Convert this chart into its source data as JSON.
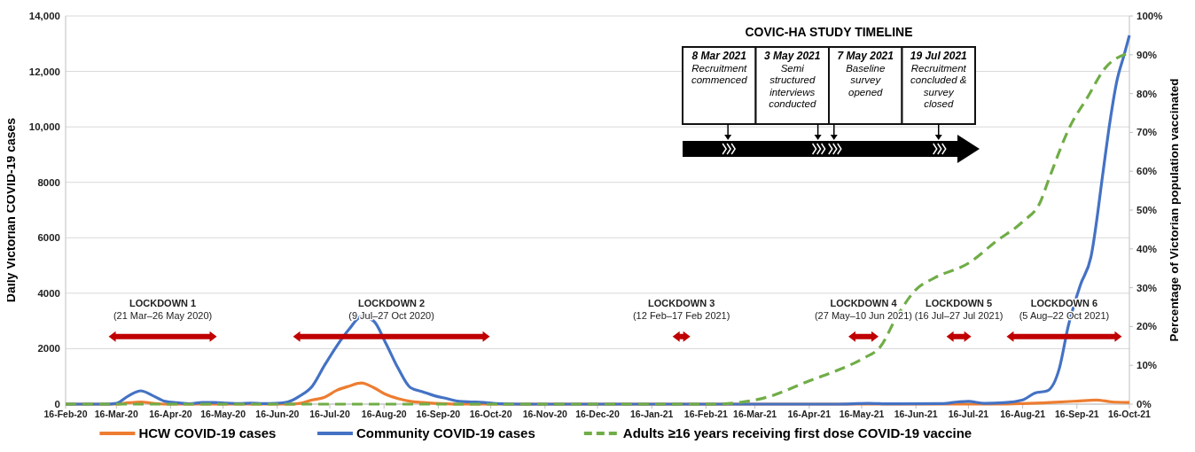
{
  "chart_data": {
    "type": "line",
    "ylabel": "Daily Victorian COVID-19 cases",
    "y2label": "Percentage of Victorian population vaccinated",
    "xlim": [
      "2020-02-16",
      "2021-10-16"
    ],
    "xticks": [
      {
        "value": "2020-02-16",
        "label": "16-Feb-20"
      },
      {
        "value": "2020-03-16",
        "label": "16-Mar-20"
      },
      {
        "value": "2020-04-16",
        "label": "16-Apr-20"
      },
      {
        "value": "2020-05-16",
        "label": "16-May-20"
      },
      {
        "value": "2020-06-16",
        "label": "16-Jun-20"
      },
      {
        "value": "2020-07-16",
        "label": "16-Jul-20"
      },
      {
        "value": "2020-08-16",
        "label": "16-Aug-20"
      },
      {
        "value": "2020-09-16",
        "label": "16-Sep-20"
      },
      {
        "value": "2020-10-16",
        "label": "16-Oct-20"
      },
      {
        "value": "2020-11-16",
        "label": "16-Nov-20"
      },
      {
        "value": "2020-12-16",
        "label": "16-Dec-20"
      },
      {
        "value": "2021-01-16",
        "label": "16-Jan-21"
      },
      {
        "value": "2021-02-16",
        "label": "16-Feb-21"
      },
      {
        "value": "2021-03-16",
        "label": "16-Mar-21"
      },
      {
        "value": "2021-04-16",
        "label": "16-Apr-21"
      },
      {
        "value": "2021-05-16",
        "label": "16-May-21"
      },
      {
        "value": "2021-06-16",
        "label": "16-Jun-21"
      },
      {
        "value": "2021-07-16",
        "label": "16-Jul-21"
      },
      {
        "value": "2021-08-16",
        "label": "16-Aug-21"
      },
      {
        "value": "2021-09-16",
        "label": "16-Sep-21"
      },
      {
        "value": "2021-10-16",
        "label": "16-Oct-21"
      }
    ],
    "ylim": [
      0,
      14000
    ],
    "yticks": [
      0,
      2000,
      4000,
      6000,
      8000,
      {
        "value": 10000,
        "label": "10,000"
      },
      {
        "value": 12000,
        "label": "12,000"
      },
      {
        "value": 14000,
        "label": "14,000"
      }
    ],
    "y2lim": [
      0,
      100
    ],
    "y2ticks": [
      {
        "value": 0,
        "label": "0%"
      },
      {
        "value": 10,
        "label": "10%"
      },
      {
        "value": 20,
        "label": "20%"
      },
      {
        "value": 30,
        "label": "30%"
      },
      {
        "value": 40,
        "label": "40%"
      },
      {
        "value": 50,
        "label": "50%"
      },
      {
        "value": 60,
        "label": "60%"
      },
      {
        "value": 70,
        "label": "70%"
      },
      {
        "value": 80,
        "label": "80%"
      },
      {
        "value": 90,
        "label": "90%"
      },
      {
        "value": 100,
        "label": "100%"
      }
    ],
    "grid": "y",
    "legend": "bottom",
    "series": [
      {
        "name": "HCW COVID-19 cases",
        "color": "#ed7d31",
        "x": [
          "2020-02-16",
          "2020-03-16",
          "2020-03-23",
          "2020-03-30",
          "2020-04-06",
          "2020-04-13",
          "2020-06-22",
          "2020-06-29",
          "2020-07-06",
          "2020-07-13",
          "2020-07-20",
          "2020-07-27",
          "2020-08-03",
          "2020-08-10",
          "2020-08-17",
          "2020-08-24",
          "2020-08-31",
          "2020-09-07",
          "2020-09-14",
          "2020-09-21",
          "2020-10-01",
          "2021-08-01",
          "2021-08-16",
          "2021-09-01",
          "2021-09-16",
          "2021-09-27",
          "2021-10-06",
          "2021-10-16"
        ],
        "values": [
          0,
          0,
          50,
          80,
          30,
          0,
          0,
          30,
          150,
          250,
          500,
          650,
          760,
          600,
          350,
          200,
          100,
          60,
          30,
          10,
          0,
          0,
          20,
          60,
          110,
          150,
          80,
          60
        ]
      },
      {
        "name": "Community COVID-19 cases",
        "color": "#4472c4",
        "x": [
          "2020-02-16",
          "2020-03-09",
          "2020-03-16",
          "2020-03-23",
          "2020-03-30",
          "2020-04-06",
          "2020-04-13",
          "2020-04-20",
          "2020-04-27",
          "2020-05-04",
          "2020-05-11",
          "2020-05-18",
          "2020-05-25",
          "2020-06-01",
          "2020-06-08",
          "2020-06-15",
          "2020-06-22",
          "2020-06-29",
          "2020-07-06",
          "2020-07-13",
          "2020-07-20",
          "2020-07-27",
          "2020-08-03",
          "2020-08-10",
          "2020-08-17",
          "2020-08-24",
          "2020-08-31",
          "2020-09-07",
          "2020-09-14",
          "2020-09-21",
          "2020-09-28",
          "2020-10-05",
          "2020-10-12",
          "2020-10-19",
          "2020-11-02",
          "2021-05-01",
          "2021-05-20",
          "2021-06-01",
          "2021-07-01",
          "2021-07-10",
          "2021-07-16",
          "2021-07-25",
          "2021-08-05",
          "2021-08-16",
          "2021-08-23",
          "2021-08-30",
          "2021-09-06",
          "2021-09-11",
          "2021-09-18",
          "2021-09-24",
          "2021-10-01",
          "2021-10-04",
          "2021-10-09",
          "2021-10-13",
          "2021-10-16"
        ],
        "values": [
          0,
          0,
          30,
          300,
          480,
          300,
          100,
          50,
          10,
          60,
          60,
          40,
          20,
          40,
          20,
          30,
          80,
          300,
          650,
          1400,
          2100,
          2700,
          3150,
          3000,
          2200,
          1300,
          600,
          450,
          300,
          200,
          100,
          80,
          60,
          20,
          0,
          0,
          30,
          10,
          20,
          80,
          100,
          30,
          50,
          150,
          400,
          480,
          1300,
          2800,
          4300,
          5300,
          8400,
          9800,
          11700,
          12600,
          13300
        ]
      },
      {
        "name": "Adults ≥16 years receiving first dose COVID-19 vaccine",
        "color": "#70ad47",
        "axis": "y2",
        "line_style": "dashed",
        "x": [
          "2020-02-16",
          "2021-02-22",
          "2021-03-08",
          "2021-03-23",
          "2021-04-16",
          "2021-05-01",
          "2021-05-16",
          "2021-05-27",
          "2021-06-05",
          "2021-06-16",
          "2021-06-27",
          "2021-07-16",
          "2021-08-01",
          "2021-08-16",
          "2021-08-26",
          "2021-08-31",
          "2021-09-12",
          "2021-09-22",
          "2021-10-02",
          "2021-10-16"
        ],
        "values": [
          0,
          0,
          0.5,
          1.8,
          6,
          8.5,
          11.6,
          15,
          22.5,
          29.5,
          32.6,
          36.3,
          42,
          47,
          52,
          58,
          71.5,
          79,
          86.5,
          90.5
        ]
      }
    ],
    "annotations": [
      "COVIC-HA STUDY TIMELINE",
      "8 Mar 2021\nRecruitment\ncommenced",
      "3 May 2021\nSemi\nstructured\ninterviews\nconducted",
      "7 May 2021\nBaseline\nsurvey\nopened",
      "19 Jul 2021\nRecruitment\nconcluded &\nsurvey\nclosed",
      "LOCKDOWN 1\n(21 Mar–26 May 2020)",
      "LOCKDOWN 2\n(9 Jul–27 Oct 2020)",
      "LOCKDOWN 3\n(12 Feb–17 Feb 2021)",
      "LOCKDOWN 4\n(27 May–10 Jun 2021)",
      "LOCKDOWN 5\n(16 Jul–27 Jul 2021)",
      "LOCKDOWN 6\n(5 Aug–22 Oct 2021)"
    ]
  }
}
